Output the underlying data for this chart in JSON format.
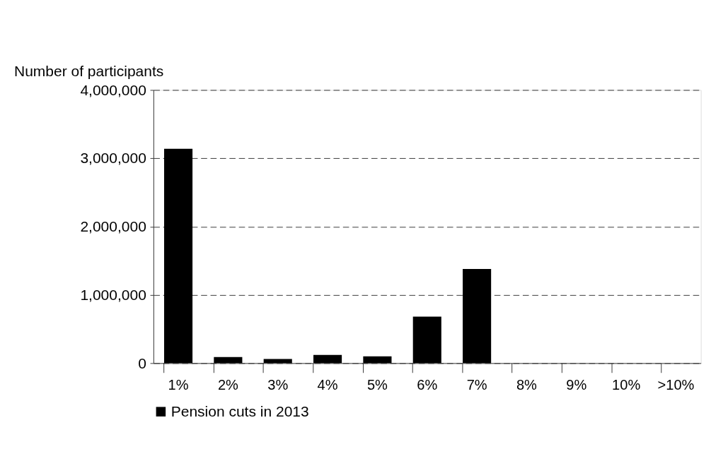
{
  "chart_data": {
    "type": "bar",
    "ylabel": "Number of participants",
    "categories": [
      "1%",
      "2%",
      "3%",
      "4%",
      "5%",
      "6%",
      "7%",
      "8%",
      "9%",
      "10%",
      ">10%"
    ],
    "series": [
      {
        "name": "Pension cuts in 2013",
        "color": "#000000",
        "values": [
          3140000,
          90000,
          60000,
          120000,
          100000,
          680000,
          1380000,
          0,
          0,
          0,
          0
        ]
      }
    ],
    "ylim": [
      0,
      4000000
    ],
    "yticks": [
      0,
      {
        "value": 1000000,
        "label": "1,000,000"
      },
      {
        "value": 2000000,
        "label": "2,000,000"
      },
      {
        "value": 3000000,
        "label": "3,000,000"
      },
      {
        "value": 4000000,
        "label": "4,000,000"
      }
    ],
    "grid": "y",
    "legend": "bottom"
  }
}
